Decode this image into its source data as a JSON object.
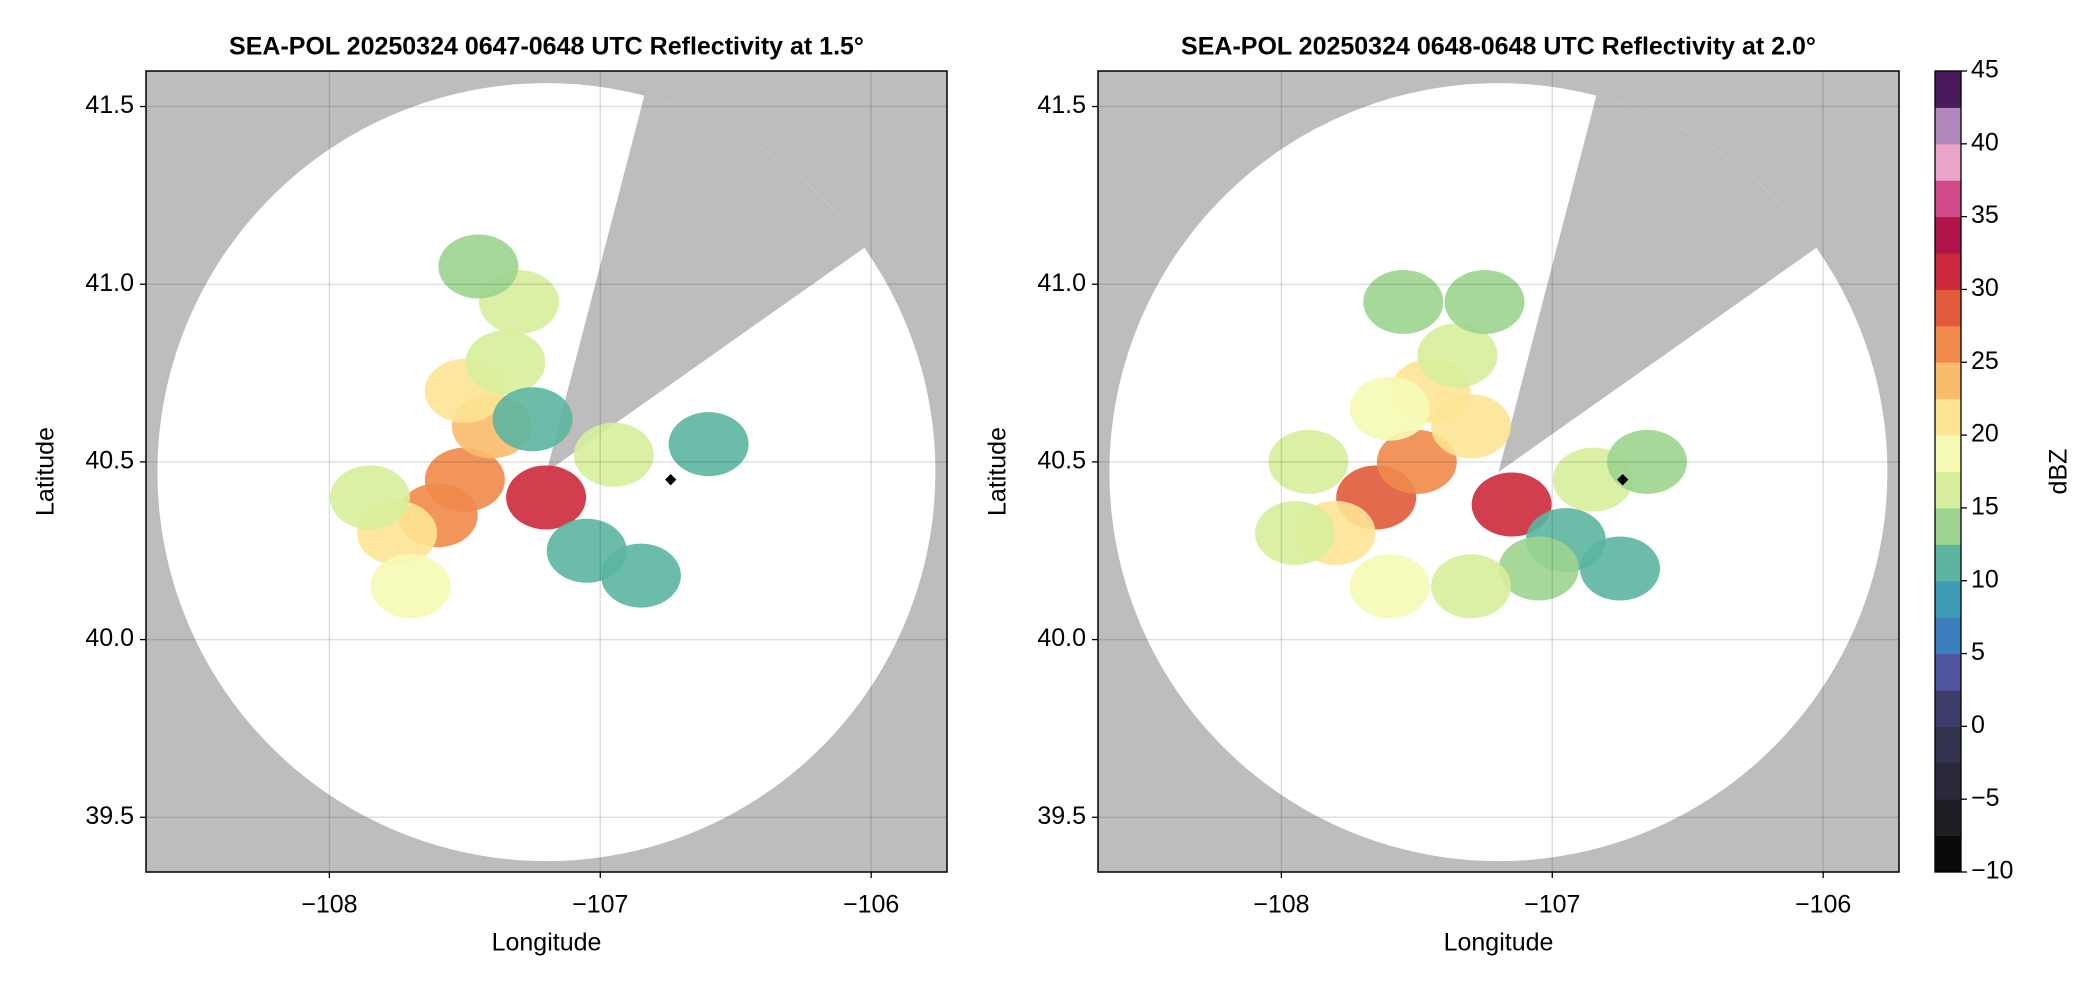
{
  "chart_data": [
    {
      "type": "scatter",
      "title": "SEA-POL 20250324 0647-0648 UTC Reflectivity at 1.5°",
      "x_label": "Longitude",
      "y_label": "Latitude",
      "x": [
        -107.6,
        -107.75,
        -107.5,
        -107.7,
        -107.85,
        -107.4,
        -107.5,
        -107.35,
        -107.25,
        -107.2,
        -107.05,
        -106.85,
        -106.95,
        -106.6,
        -107.3,
        -107.45
      ],
      "y": [
        40.35,
        40.3,
        40.45,
        40.15,
        40.4,
        40.6,
        40.7,
        40.78,
        40.62,
        40.4,
        40.25,
        40.18,
        40.52,
        40.55,
        40.95,
        41.05
      ],
      "values": [
        25,
        22,
        27,
        18,
        17,
        24,
        20,
        17,
        12,
        32,
        10,
        12,
        17,
        12,
        15,
        14
      ],
      "site": [
        -106.74,
        40.45
      ],
      "xlim": [
        -108.677,
        -105.72
      ],
      "ylim": [
        39.346,
        41.6
      ],
      "xticks": [
        {
          "value": -108,
          "label": "−108"
        },
        {
          "value": -107,
          "label": "−107"
        },
        {
          "value": -106,
          "label": "−106"
        }
      ],
      "yticks": [
        39.5,
        {
          "value": 40,
          "label": "40.0"
        },
        40.5,
        {
          "value": 41,
          "label": "41.0"
        },
        41.5
      ],
      "grid": true
    },
    {
      "type": "scatter",
      "title": "SEA-POL 20250324 0648-0648 UTC Reflectivity at 2.0°",
      "x_label": "Longitude",
      "y_label": "Latitude",
      "x": [
        -107.65,
        -107.5,
        -107.8,
        -107.6,
        -107.9,
        -107.95,
        -107.3,
        -107.45,
        -107.6,
        -107.35,
        -107.55,
        -107.25,
        -107.15,
        -106.95,
        -106.75,
        -107.05,
        -106.85,
        -106.65,
        -107.3
      ],
      "y": [
        40.4,
        40.5,
        40.3,
        40.15,
        40.5,
        40.3,
        40.6,
        40.7,
        40.65,
        40.8,
        40.95,
        40.95,
        40.38,
        40.28,
        40.2,
        40.2,
        40.45,
        40.5,
        40.15
      ],
      "values": [
        28,
        26,
        22,
        18,
        16,
        17,
        22,
        20,
        18,
        16,
        14,
        13,
        30,
        12,
        10,
        14,
        15,
        14,
        16
      ],
      "site": [
        -106.74,
        40.45
      ],
      "xlim": [
        -108.677,
        -105.72
      ],
      "ylim": [
        39.346,
        41.6
      ],
      "xticks": [
        {
          "value": -108,
          "label": "−108"
        },
        {
          "value": -107,
          "label": "−107"
        },
        {
          "value": -106,
          "label": "−106"
        }
      ],
      "yticks": [
        39.5,
        {
          "value": 40,
          "label": "40.0"
        },
        40.5,
        {
          "value": 41,
          "label": "41.0"
        },
        41.5
      ],
      "grid": true
    }
  ],
  "colorbar": {
    "label": "dBZ",
    "lim": [
      -10,
      45
    ],
    "ticks": [
      {
        "value": -10,
        "label": "−10"
      },
      {
        "value": -5,
        "label": "−5"
      },
      0,
      5,
      10,
      15,
      20,
      25,
      30,
      35,
      40,
      45
    ],
    "colors": [
      "#0a0a0a",
      "#1e1e24",
      "#2a2a3a",
      "#33334f",
      "#3d3d6b",
      "#5155a0",
      "#3b7fbf",
      "#3c9cb5",
      "#5bb5a0",
      "#9cd48f",
      "#d6ee9b",
      "#f5fbb5",
      "#fde494",
      "#f9bc6a",
      "#f08a4b",
      "#e15a3b",
      "#cc2a3c",
      "#b0124a",
      "#d04a8a",
      "#eaa6c8",
      "#b088bc",
      "#4a1a5a"
    ]
  }
}
